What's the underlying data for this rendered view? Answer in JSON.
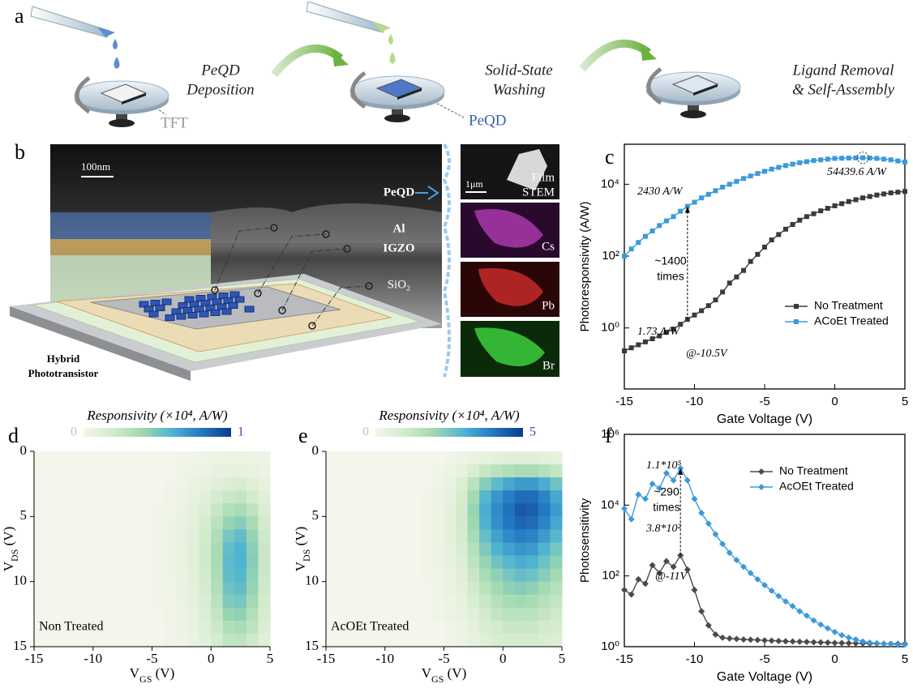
{
  "labels": [
    "a",
    "b",
    "c",
    "d",
    "e",
    "f"
  ],
  "diagram": {
    "steps": [
      [
        "PeQD",
        "Deposition"
      ],
      [
        "Solid-State",
        "Washing"
      ],
      [
        "Ligand Removal",
        "& Self-Assembly"
      ]
    ],
    "callouts": [
      "TFT",
      "PeQD"
    ],
    "cross_section": {
      "scale": "100nm",
      "layers": [
        "PeQD",
        "Al",
        "IGZO",
        "SiO₂"
      ],
      "device": [
        "Hybrid",
        "Phototransistor"
      ]
    },
    "eds": {
      "scale": "1μm",
      "tiles": [
        [
          "Film",
          "STEM"
        ],
        [
          "Cs"
        ],
        [
          "Pb"
        ],
        [
          "Br"
        ]
      ]
    }
  },
  "chart_data": [
    {
      "type": "line",
      "ylog": true,
      "xlabel": "Gate Voltage (V)",
      "ylabel": "Photoresponsivity (A/W)",
      "xlim": [
        -15,
        5
      ],
      "ylim": [
        0.02,
        130000
      ],
      "xticks": [
        -15,
        -10,
        -5,
        0,
        5
      ],
      "yticks": [
        {
          "value": 1,
          "label": "10⁰"
        },
        {
          "value": 100,
          "label": "10²"
        },
        {
          "value": 10000,
          "label": "10⁴"
        }
      ],
      "legend": "lower right",
      "x": [
        -15,
        -14.5,
        -14,
        -13.5,
        -13,
        -12.5,
        -12,
        -11.5,
        -11,
        -10.5,
        -10,
        -9.5,
        -9,
        -8.5,
        -8,
        -7.5,
        -7,
        -6.5,
        -6,
        -5.5,
        -5,
        -4.5,
        -4,
        -3.5,
        -3,
        -2.5,
        -2,
        -1.5,
        -1,
        -0.5,
        0,
        0.5,
        1,
        1.5,
        2,
        2.5,
        3,
        3.5,
        4,
        4.5,
        5
      ],
      "series": [
        {
          "name": "No Treatment",
          "color": "#3a3a3a",
          "marker": "square",
          "values": [
            0.23,
            0.28,
            0.34,
            0.41,
            0.5,
            0.6,
            0.76,
            0.93,
            1.26,
            1.73,
            2.29,
            3.02,
            4.17,
            6.03,
            10,
            17.8,
            26.3,
            39.8,
            70.8,
            112,
            178,
            282,
            398,
            562,
            759,
            1000,
            1259,
            1514,
            1820,
            2138,
            2512,
            2884,
            3311,
            3715,
            4169,
            4571,
            5012,
            5370,
            5754,
            6026,
            6310
          ]
        },
        {
          "name": "ACoEt Treated",
          "color": "#3c9ad8",
          "marker": "square",
          "values": [
            100,
            158,
            240,
            355,
            501,
            708,
            955,
            1259,
            1778,
            2430,
            3162,
            4169,
            5248,
            6607,
            8318,
            10000,
            12023,
            14454,
            16982,
            19953,
            22909,
            26303,
            29512,
            33113,
            36308,
            39811,
            42658,
            45709,
            47863,
            50119,
            52481,
            53088,
            53703,
            54325,
            54439.6,
            53703,
            52481,
            50119,
            47863,
            44668,
            41687
          ]
        }
      ],
      "annotations": [
        "2430 A/W",
        "~1400",
        "times",
        "1.73 A/W",
        "@-10.5V",
        "54439.6 A/W"
      ]
    },
    {
      "type": "heatmap",
      "title": "Responsivity (×10⁴, A/W)",
      "annotation": "Non Treated",
      "xlabel": [
        "V",
        "GS",
        " (V)"
      ],
      "ylabel": [
        "V",
        "DS",
        " (V)"
      ],
      "xlim": [
        -15,
        5
      ],
      "ylim": [
        15,
        0
      ],
      "xticks": [
        -15,
        -10,
        -5,
        0,
        5
      ],
      "yticks": [
        0,
        5,
        10,
        15
      ],
      "zlim": [
        0,
        1
      ],
      "cticks": [
        0,
        1
      ],
      "colormap": [
        "#f3f6ea",
        "#d3ebcc",
        "#9fd8b0",
        "#4fb3d2",
        "#2378c2",
        "#0e3b8e"
      ],
      "x": [
        -14.5,
        -13.5,
        -12.5,
        -11.5,
        -10.5,
        -9.5,
        -8.5,
        -7.5,
        -6.5,
        -5.5,
        -4.5,
        -3.5,
        -2.5,
        -1.5,
        -0.5,
        0.5,
        1.5,
        2.5,
        3.5,
        4.5
      ],
      "y": [
        0.5,
        1.5,
        2.5,
        3.5,
        4.5,
        5.5,
        6.5,
        7.5,
        8.5,
        9.5,
        10.5,
        11.5,
        12.5,
        13.5,
        14.5
      ],
      "z": [
        [
          0,
          0,
          0,
          0,
          0,
          0,
          0,
          0,
          0,
          0,
          0,
          0,
          0.01,
          0.02,
          0.03,
          0.04,
          0.05,
          0.05,
          0.04,
          0.03
        ],
        [
          0,
          0,
          0,
          0,
          0,
          0,
          0,
          0,
          0,
          0,
          0,
          0,
          0.02,
          0.03,
          0.05,
          0.07,
          0.09,
          0.09,
          0.07,
          0.05
        ],
        [
          0,
          0,
          0,
          0,
          0,
          0,
          0,
          0,
          0,
          0,
          0,
          0.01,
          0.03,
          0.05,
          0.08,
          0.12,
          0.15,
          0.16,
          0.12,
          0.08
        ],
        [
          0,
          0,
          0,
          0,
          0,
          0,
          0,
          0,
          0,
          0,
          0,
          0.02,
          0.04,
          0.07,
          0.11,
          0.18,
          0.24,
          0.26,
          0.2,
          0.12
        ],
        [
          0,
          0,
          0,
          0,
          0,
          0,
          0,
          0,
          0,
          0,
          0.01,
          0.02,
          0.05,
          0.09,
          0.15,
          0.25,
          0.33,
          0.36,
          0.28,
          0.16
        ],
        [
          0,
          0,
          0,
          0,
          0,
          0,
          0,
          0,
          0,
          0,
          0.01,
          0.03,
          0.06,
          0.1,
          0.18,
          0.3,
          0.42,
          0.46,
          0.36,
          0.2
        ],
        [
          0,
          0,
          0,
          0,
          0,
          0,
          0,
          0,
          0,
          0,
          0.01,
          0.03,
          0.07,
          0.11,
          0.2,
          0.34,
          0.5,
          0.55,
          0.42,
          0.22
        ],
        [
          0,
          0,
          0,
          0,
          0,
          0,
          0,
          0,
          0,
          0,
          0.01,
          0.03,
          0.07,
          0.12,
          0.21,
          0.36,
          0.55,
          0.6,
          0.45,
          0.24
        ],
        [
          0,
          0,
          0,
          0,
          0,
          0,
          0,
          0,
          0,
          0,
          0.01,
          0.03,
          0.07,
          0.12,
          0.21,
          0.36,
          0.56,
          0.6,
          0.46,
          0.24
        ],
        [
          0,
          0,
          0,
          0,
          0,
          0,
          0,
          0,
          0,
          0,
          0.01,
          0.03,
          0.06,
          0.11,
          0.2,
          0.35,
          0.55,
          0.58,
          0.44,
          0.23
        ],
        [
          0,
          0,
          0,
          0,
          0,
          0,
          0,
          0,
          0,
          0,
          0.01,
          0.02,
          0.06,
          0.1,
          0.19,
          0.33,
          0.52,
          0.55,
          0.42,
          0.22
        ],
        [
          0,
          0,
          0,
          0,
          0,
          0,
          0,
          0,
          0,
          0,
          0.01,
          0.02,
          0.05,
          0.09,
          0.17,
          0.3,
          0.48,
          0.5,
          0.38,
          0.2
        ],
        [
          0,
          0,
          0,
          0,
          0,
          0,
          0,
          0,
          0,
          0,
          0,
          0.02,
          0.04,
          0.08,
          0.15,
          0.26,
          0.42,
          0.44,
          0.33,
          0.18
        ],
        [
          0,
          0,
          0,
          0,
          0,
          0,
          0,
          0,
          0,
          0,
          0,
          0.01,
          0.04,
          0.07,
          0.13,
          0.22,
          0.34,
          0.36,
          0.28,
          0.15
        ],
        [
          0,
          0,
          0,
          0,
          0,
          0,
          0,
          0,
          0,
          0,
          0,
          0.01,
          0.03,
          0.06,
          0.11,
          0.18,
          0.27,
          0.28,
          0.22,
          0.12
        ]
      ]
    },
    {
      "type": "heatmap",
      "title": "Responsivity (×10⁴, A/W)",
      "annotation": "AcOEt Treated",
      "xlabel": [
        "V",
        "GS",
        " (V)"
      ],
      "ylabel": [
        "V",
        "DS",
        " (V)"
      ],
      "xlim": [
        -15,
        5
      ],
      "ylim": [
        15,
        0
      ],
      "xticks": [
        -15,
        -10,
        -5,
        0,
        5
      ],
      "yticks": [
        0,
        5,
        10,
        15
      ],
      "zlim": [
        0,
        5
      ],
      "cticks": [
        0,
        5
      ],
      "colormap": [
        "#f3f6ea",
        "#d3ebcc",
        "#9fd8b0",
        "#4fb3d2",
        "#2378c2",
        "#0e3b8e"
      ],
      "x": [
        -14.5,
        -13.5,
        -12.5,
        -11.5,
        -10.5,
        -9.5,
        -8.5,
        -7.5,
        -6.5,
        -5.5,
        -4.5,
        -3.5,
        -2.5,
        -1.5,
        -0.5,
        0.5,
        1.5,
        2.5,
        3.5,
        4.5
      ],
      "y": [
        0.5,
        1.5,
        2.5,
        3.5,
        4.5,
        5.5,
        6.5,
        7.5,
        8.5,
        9.5,
        10.5,
        11.5,
        12.5,
        13.5,
        14.5
      ],
      "z": [
        [
          0,
          0,
          0,
          0,
          0,
          0,
          0,
          0,
          0,
          0,
          0.1,
          0.2,
          0.3,
          0.4,
          0.5,
          0.6,
          0.6,
          0.6,
          0.5,
          0.4
        ],
        [
          0,
          0,
          0,
          0,
          0,
          0,
          0,
          0,
          0,
          0.1,
          0.2,
          0.4,
          0.8,
          1.2,
          1.5,
          1.7,
          1.8,
          1.8,
          1.6,
          1.3
        ],
        [
          0,
          0,
          0,
          0,
          0,
          0,
          0,
          0,
          0,
          0.1,
          0.3,
          0.7,
          1.5,
          2.3,
          2.8,
          3.2,
          3.4,
          3.4,
          3.1,
          2.6
        ],
        [
          0,
          0,
          0,
          0,
          0,
          0,
          0,
          0,
          0.1,
          0.2,
          0.4,
          0.9,
          1.9,
          2.9,
          3.5,
          3.9,
          4.2,
          4.2,
          3.8,
          3.2
        ],
        [
          0,
          0,
          0,
          0,
          0,
          0,
          0,
          0,
          0.1,
          0.2,
          0.5,
          1,
          2.1,
          3.1,
          3.7,
          4.1,
          4.5,
          4.4,
          4,
          3.4
        ],
        [
          0,
          0,
          0,
          0,
          0,
          0,
          0,
          0,
          0.1,
          0.2,
          0.5,
          1,
          2,
          3,
          3.6,
          4,
          4.3,
          4.2,
          3.8,
          3.2
        ],
        [
          0,
          0,
          0,
          0,
          0,
          0,
          0,
          0,
          0.1,
          0.2,
          0.5,
          0.9,
          1.8,
          2.7,
          3.3,
          3.7,
          3.9,
          3.8,
          3.4,
          2.9
        ],
        [
          0,
          0,
          0,
          0,
          0,
          0,
          0,
          0,
          0.1,
          0.2,
          0.4,
          0.8,
          1.6,
          2.4,
          3,
          3.3,
          3.5,
          3.4,
          3,
          2.5
        ],
        [
          0,
          0,
          0,
          0,
          0,
          0,
          0,
          0,
          0.1,
          0.2,
          0.4,
          0.7,
          1.4,
          2.1,
          2.6,
          2.9,
          3.1,
          3,
          2.6,
          2.2
        ],
        [
          0,
          0,
          0,
          0,
          0,
          0,
          0,
          0,
          0.1,
          0.1,
          0.3,
          0.6,
          1.2,
          1.8,
          2.2,
          2.5,
          2.7,
          2.6,
          2.3,
          1.9
        ],
        [
          0,
          0,
          0,
          0,
          0,
          0,
          0,
          0,
          0,
          0.1,
          0.3,
          0.5,
          1,
          1.5,
          1.9,
          2.2,
          2.3,
          2.2,
          1.9,
          1.6
        ],
        [
          0,
          0,
          0,
          0,
          0,
          0,
          0,
          0,
          0,
          0.1,
          0.2,
          0.4,
          0.8,
          1.2,
          1.6,
          1.8,
          1.9,
          1.8,
          1.6,
          1.3
        ],
        [
          0,
          0,
          0,
          0,
          0,
          0,
          0,
          0,
          0,
          0.1,
          0.2,
          0.3,
          0.6,
          1,
          1.3,
          1.5,
          1.5,
          1.5,
          1.3,
          1.1
        ],
        [
          0,
          0,
          0,
          0,
          0,
          0,
          0,
          0,
          0,
          0,
          0.1,
          0.2,
          0.5,
          0.8,
          1,
          1.2,
          1.2,
          1.2,
          1,
          0.9
        ],
        [
          0,
          0,
          0,
          0,
          0,
          0,
          0,
          0,
          0,
          0,
          0.1,
          0.2,
          0.4,
          0.6,
          0.8,
          0.9,
          0.9,
          0.9,
          0.8,
          0.7
        ]
      ]
    },
    {
      "type": "line",
      "ylog": true,
      "xlabel": "Gate Voltage (V)",
      "ylabel": "Photosensitivity",
      "xlim": [
        -15,
        5
      ],
      "ylim": [
        1,
        1000000
      ],
      "xticks": [
        -15,
        -10,
        -5,
        0,
        5
      ],
      "yticks": [
        {
          "value": 1,
          "label": "10⁰"
        },
        {
          "value": 100,
          "label": "10²"
        },
        {
          "value": 10000,
          "label": "10⁴"
        },
        {
          "value": 1000000,
          "label": "10⁶"
        }
      ],
      "legend": "upper right",
      "x": [
        -15,
        -14.5,
        -14,
        -13.5,
        -13,
        -12.5,
        -12,
        -11.5,
        -11,
        -10.5,
        -10,
        -9.5,
        -9,
        -8.5,
        -8,
        -7.5,
        -7,
        -6.5,
        -6,
        -5.5,
        -5,
        -4.5,
        -4,
        -3.5,
        -3,
        -2.5,
        -2,
        -1.5,
        -1,
        -0.5,
        0,
        0.5,
        1,
        1.5,
        2,
        2.5,
        3,
        3.5,
        4,
        4.5,
        5
      ],
      "series": [
        {
          "name": "No Treatment",
          "color": "#4a4a4a",
          "marker": "diamond",
          "values": [
            40,
            30,
            80,
            60,
            200,
            120,
            260,
            180,
            380,
            150,
            40,
            10,
            4,
            2.2,
            1.8,
            1.7,
            1.65,
            1.6,
            1.58,
            1.55,
            1.5,
            1.48,
            1.45,
            1.42,
            1.4,
            1.38,
            1.36,
            1.34,
            1.32,
            1.3,
            1.28,
            1.27,
            1.26,
            1.25,
            1.24,
            1.23,
            1.22,
            1.21,
            1.2,
            1.2,
            1.2
          ]
        },
        {
          "name": "AcOEt Treated",
          "color": "#3c9ad8",
          "marker": "diamond",
          "values": [
            8000,
            4000,
            20000,
            15000,
            40000,
            30000,
            80000,
            50000,
            110000,
            50000,
            15000,
            6000,
            3000,
            1500,
            800,
            450,
            280,
            180,
            120,
            80,
            55,
            38,
            27,
            19,
            14,
            10,
            7.5,
            5.5,
            4.2,
            3.3,
            2.6,
            2.1,
            1.8,
            1.6,
            1.4,
            1.3,
            1.25,
            1.2,
            1.18,
            1.15,
            1.15
          ]
        }
      ],
      "annotations": [
        "1.1*10⁵",
        "~290",
        "times",
        "3.8*10²",
        "@-11V"
      ]
    }
  ]
}
